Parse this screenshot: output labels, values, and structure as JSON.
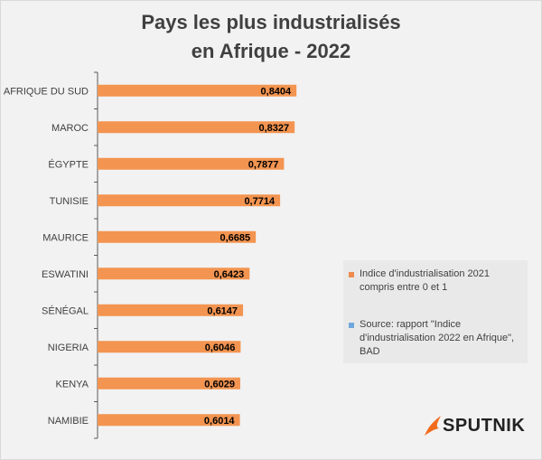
{
  "chart_data": {
    "type": "bar",
    "orientation": "horizontal",
    "title_line1": "Pays les plus industrialisés",
    "title_line2": "en Afrique - 2022",
    "categories": [
      "AFRIQUE DU SUD",
      "MAROC",
      "ÉGYPTE",
      "TUNISIE",
      "MAURICE",
      "ESWATINI",
      "SÉNÉGAL",
      "NIGERIA",
      "KENYA",
      "NAMIBIE"
    ],
    "values": [
      0.8404,
      0.8327,
      0.7877,
      0.7714,
      0.6685,
      0.6423,
      0.6147,
      0.6046,
      0.6029,
      0.6014
    ],
    "value_labels": [
      "0,8404",
      "0,8327",
      "0,7877",
      "0,7714",
      "0,6685",
      "0,6423",
      "0,6147",
      "0,6046",
      "0,6029",
      "0,6014"
    ],
    "xlim": [
      0,
      1
    ],
    "grid": false,
    "legend_placement": "right",
    "bar_color": "#f39450"
  },
  "legend": {
    "items": [
      {
        "label": "Indice d'industrialisation 2021 compris entre 0 et 1",
        "color": "#ed8c4e"
      },
      {
        "label": "Source: rapport \"Indice d'industrialisation 2022 en Afrique\", BAD",
        "color": "#6fa8dc"
      }
    ]
  },
  "brand": {
    "name": "SPUTNIK",
    "color": "#f26b1d"
  }
}
